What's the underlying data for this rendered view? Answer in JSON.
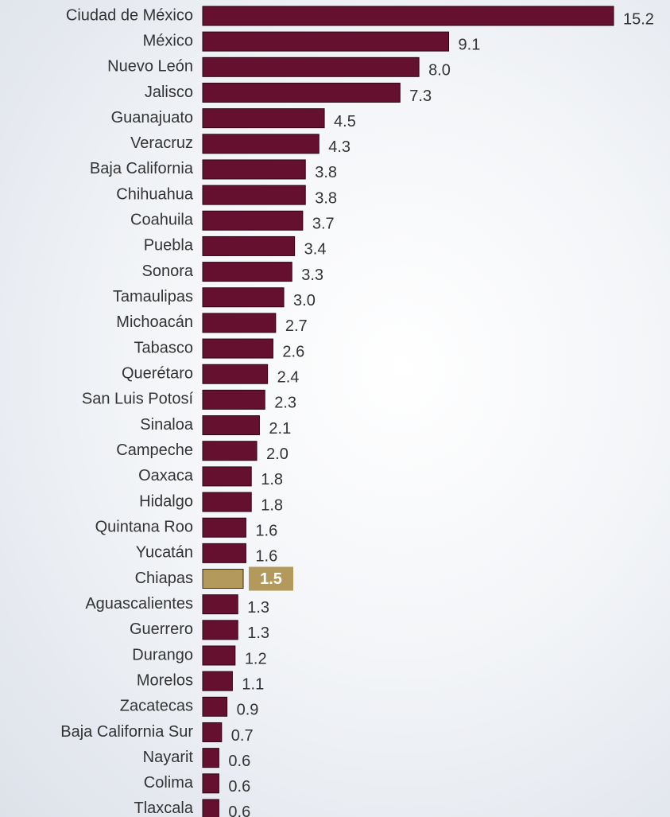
{
  "chart_data": {
    "type": "barh",
    "categories": [
      "Ciudad de México",
      "México",
      "Nuevo León",
      "Jalisco",
      "Guanajuato",
      "Veracruz",
      "Baja California",
      "Chihuahua",
      "Coahuila",
      "Puebla",
      "Sonora",
      "Tamaulipas",
      "Michoacán",
      "Tabasco",
      "Querétaro",
      "San Luis Potosí",
      "Sinaloa",
      "Campeche",
      "Oaxaca",
      "Hidalgo",
      "Quintana Roo",
      "Yucatán",
      "Chiapas",
      "Aguascalientes",
      "Guerrero",
      "Durango",
      "Morelos",
      "Zacatecas",
      "Baja California Sur",
      "Nayarit",
      "Colima",
      "Tlaxcala"
    ],
    "values": [
      15.2,
      9.1,
      8.0,
      7.3,
      4.5,
      4.3,
      3.8,
      3.8,
      3.7,
      3.4,
      3.3,
      3.0,
      2.7,
      2.6,
      2.4,
      2.3,
      2.1,
      2.0,
      1.8,
      1.8,
      1.6,
      1.6,
      1.5,
      1.3,
      1.3,
      1.2,
      1.1,
      0.9,
      0.7,
      0.6,
      0.6,
      0.6
    ],
    "value_labels": [
      "15.2",
      "9.1",
      "8.0",
      "7.3",
      "4.5",
      "4.3",
      "3.8",
      "3.8",
      "3.7",
      "3.4",
      "3.3",
      "3.0",
      "2.7",
      "2.6",
      "2.4",
      "2.3",
      "2.1",
      "2.0",
      "1.8",
      "1.8",
      "1.6",
      "1.6",
      "1.5",
      "1.3",
      "1.3",
      "1.2",
      "1.1",
      "0.9",
      "0.7",
      "0.6",
      "0.6",
      "0.6"
    ],
    "color": "#65102f",
    "highlight": {
      "category": "Chiapas",
      "color": "#b39a5c"
    }
  }
}
